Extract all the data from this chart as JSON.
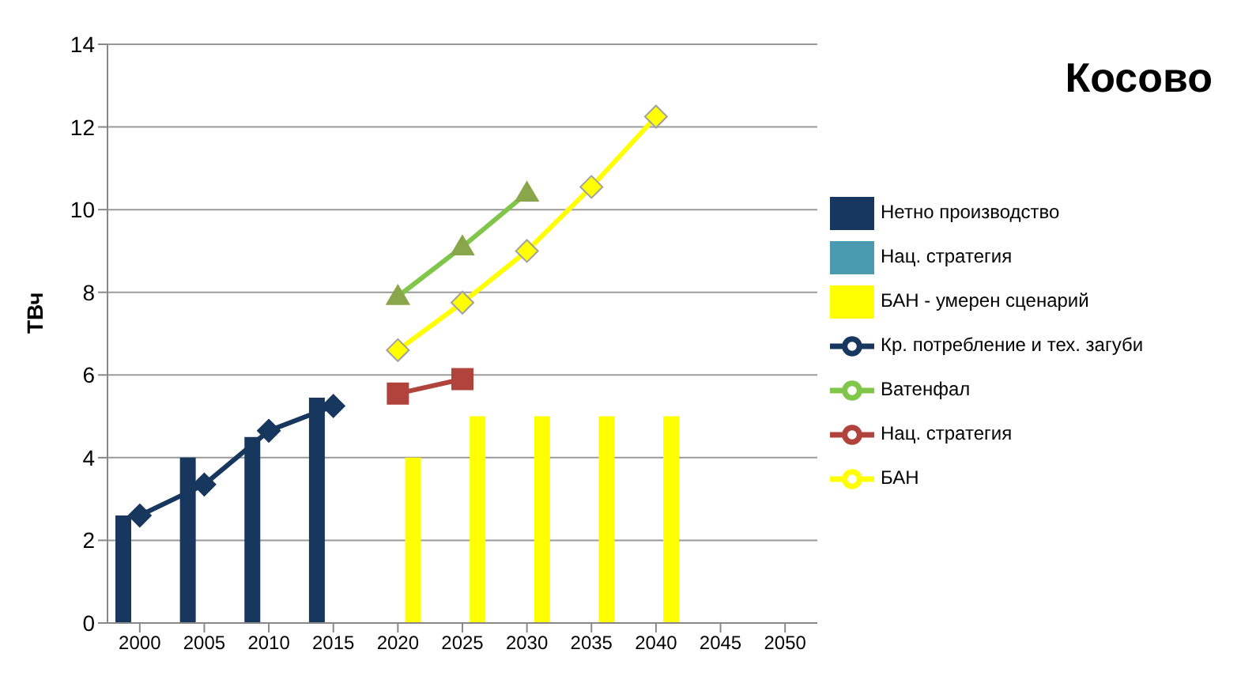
{
  "chart_data": {
    "type": "bar",
    "title": "Косово",
    "ylabel": "ТВч",
    "categories": [
      "2000",
      "2005",
      "2010",
      "2015",
      "2020",
      "2025",
      "2030",
      "2035",
      "2040",
      "2045",
      "2050"
    ],
    "series": [
      {
        "name": "Нетно производство",
        "color": "#17375e",
        "values": [
          2.6,
          4.0,
          4.5,
          5.45,
          null,
          null,
          null,
          null,
          null,
          null,
          null
        ]
      },
      {
        "name": "Нац. стратегия",
        "color": "#4a9ab0",
        "values": [
          null,
          null,
          null,
          null,
          null,
          null,
          null,
          null,
          null,
          null,
          null
        ]
      },
      {
        "name": "БАН - умерен сценарий",
        "color": "#ffff00",
        "values": [
          null,
          null,
          null,
          null,
          4.0,
          5.0,
          5.0,
          5.0,
          5.0,
          null,
          null
        ]
      },
      {
        "name": "Кр. потребление и тех. загуби",
        "type": "line",
        "marker": "diamond",
        "color": "#17375e",
        "values": [
          2.6,
          3.35,
          4.65,
          5.25,
          null,
          null,
          null,
          null,
          null,
          null,
          null
        ]
      },
      {
        "name": "Ватенфал",
        "type": "line",
        "marker": "triangle",
        "color": "#7fc64a",
        "values": [
          null,
          null,
          null,
          null,
          7.9,
          9.1,
          10.4,
          null,
          null,
          null,
          null
        ]
      },
      {
        "name": "Нац. стратегия",
        "type": "line",
        "marker": "square",
        "color": "#b0443c",
        "values": [
          null,
          null,
          null,
          null,
          5.55,
          5.9,
          null,
          null,
          null,
          null,
          null
        ]
      },
      {
        "name": "БАН",
        "type": "line",
        "marker": "diamond",
        "color": "#ffff00",
        "values": [
          null,
          null,
          null,
          null,
          6.6,
          7.75,
          9.0,
          10.55,
          12.25,
          null,
          null
        ]
      }
    ],
    "ylim": [
      0,
      14
    ],
    "yticks": [
      0,
      2,
      4,
      6,
      8,
      10,
      12,
      14
    ],
    "grid": "y",
    "legend": "right"
  }
}
